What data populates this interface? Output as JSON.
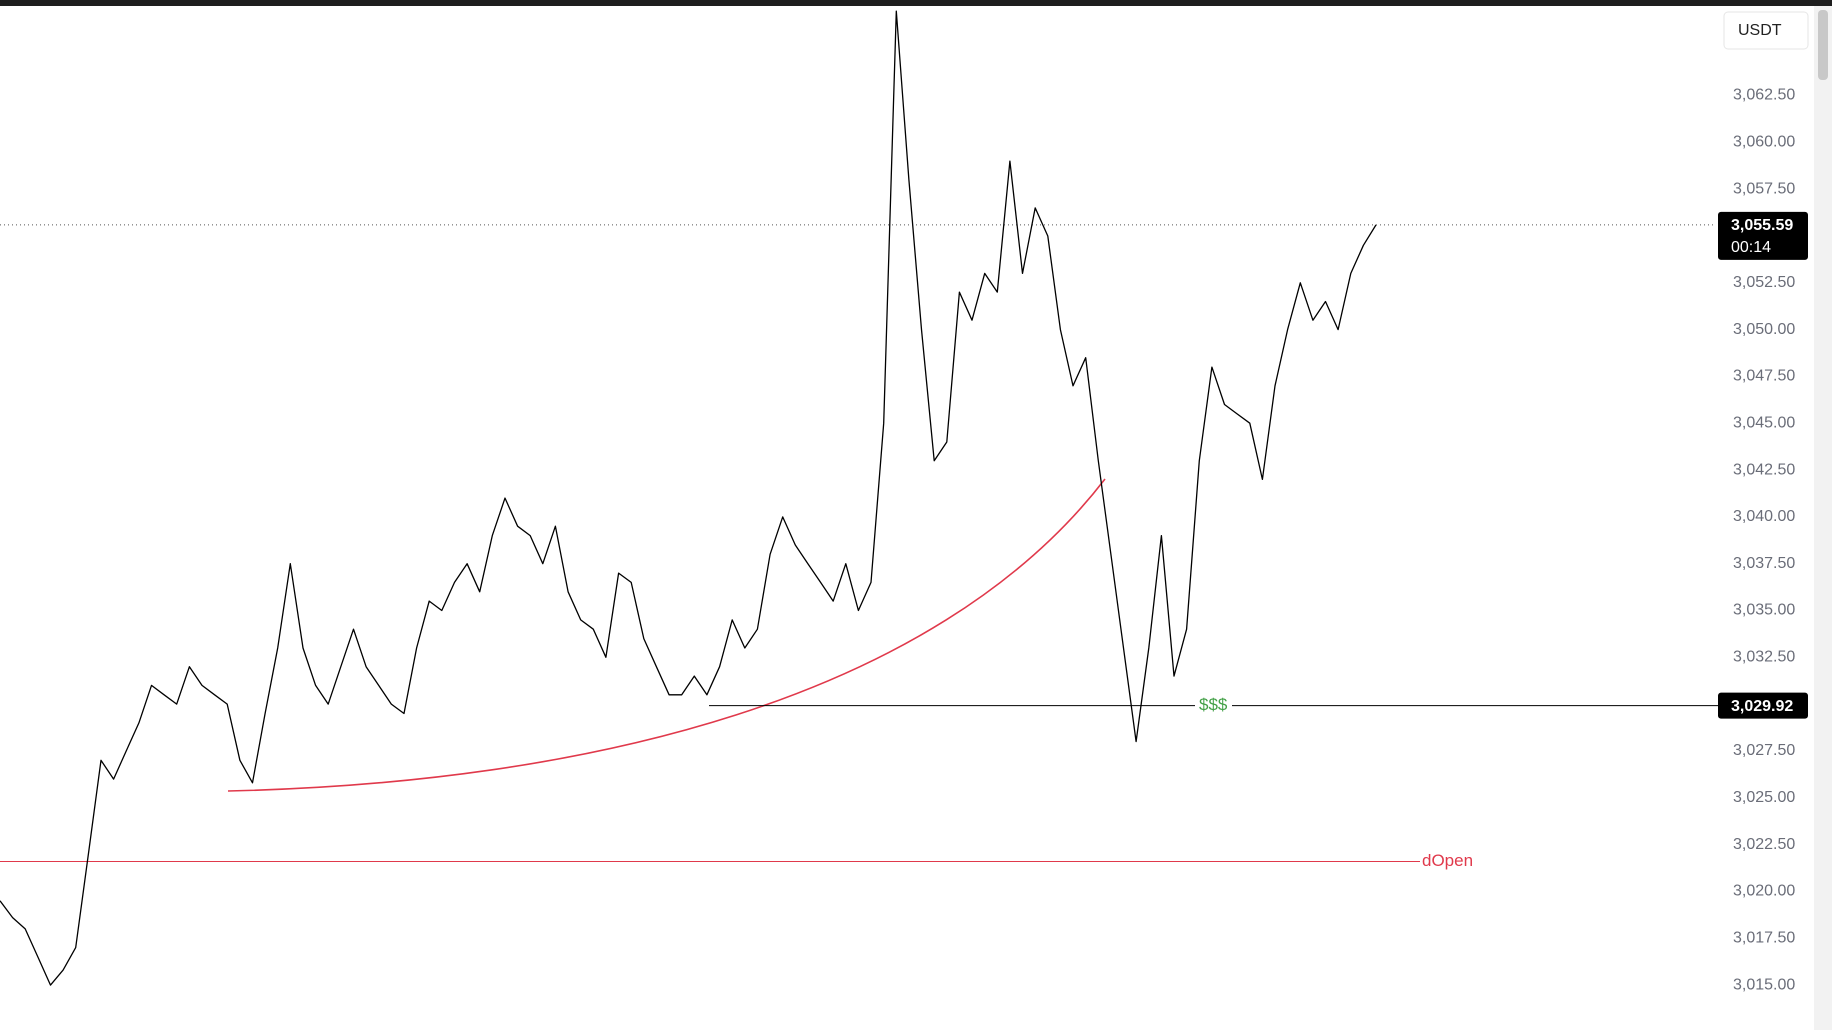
{
  "chart_data": {
    "type": "line",
    "currency": "USDT",
    "color": "#000000",
    "values": [
      3019.5,
      3018.6,
      3018,
      3016.5,
      3015,
      3015.8,
      3017,
      3022,
      3027,
      3026,
      3027.5,
      3029,
      3031,
      3030.5,
      3030,
      3032,
      3031,
      3030.5,
      3030,
      3027,
      3025.8,
      3029.5,
      3033,
      3037.5,
      3033,
      3031,
      3030,
      3032,
      3034,
      3032,
      3031,
      3030,
      3029.5,
      3033,
      3035.5,
      3035,
      3036.5,
      3037.5,
      3036,
      3039,
      3041,
      3039.5,
      3039,
      3037.5,
      3039.5,
      3036,
      3034.5,
      3034,
      3032.5,
      3037,
      3036.5,
      3033.5,
      3032,
      3030.5,
      3030.5,
      3031.5,
      3030.5,
      3032,
      3034.5,
      3033,
      3034,
      3038,
      3040,
      3038.5,
      3037.5,
      3036.5,
      3035.5,
      3037.5,
      3035,
      3036.5,
      3045,
      3067,
      3058,
      3050,
      3043,
      3044,
      3052,
      3050.5,
      3053,
      3052,
      3059,
      3053,
      3056.5,
      3055,
      3050,
      3047,
      3048.5,
      3043,
      3038,
      3033,
      3028,
      3033,
      3039,
      3031.5,
      3034,
      3043,
      3048,
      3046,
      3045.5,
      3045,
      3042,
      3047,
      3050,
      3052.5,
      3050.5,
      3051.5,
      3050,
      3053,
      3054.5,
      3055.59
    ],
    "ylim": [
      3012.6,
      3067.6
    ],
    "yticks": [
      {
        "value": 3015,
        "label": "3,015.00"
      },
      {
        "value": 3017.5,
        "label": "3,017.50"
      },
      {
        "value": 3020,
        "label": "3,020.00"
      },
      {
        "value": 3022.5,
        "label": "3,022.50"
      },
      {
        "value": 3025,
        "label": "3,025.00"
      },
      {
        "value": 3027.5,
        "label": "3,027.50"
      },
      {
        "value": 3030,
        "label": "3,030.00"
      },
      {
        "value": 3032.5,
        "label": "3,032.50"
      },
      {
        "value": 3035,
        "label": "3,035.00"
      },
      {
        "value": 3037.5,
        "label": "3,037.50"
      },
      {
        "value": 3040,
        "label": "3,040.00"
      },
      {
        "value": 3042.5,
        "label": "3,042.50"
      },
      {
        "value": 3045,
        "label": "3,045.00"
      },
      {
        "value": 3047.5,
        "label": "3,047.50"
      },
      {
        "value": 3050,
        "label": "3,050.00"
      },
      {
        "value": 3052.5,
        "label": "3,052.50"
      },
      {
        "value": 3055,
        "label": "3,055.00"
      },
      {
        "value": 3057.5,
        "label": "3,057.50"
      },
      {
        "value": 3060,
        "label": "3,060.00"
      },
      {
        "value": 3062.5,
        "label": "3,062.50"
      }
    ],
    "last_price": {
      "value": 3055.59,
      "label": "3,055.59",
      "countdown": "00:14"
    },
    "level": {
      "value": 3029.92,
      "label": "3,029.92",
      "text": "$$$",
      "color": "#43a047"
    },
    "daily_open": {
      "value": 3021.6,
      "text": "dOpen",
      "color": "#e0394b"
    }
  }
}
